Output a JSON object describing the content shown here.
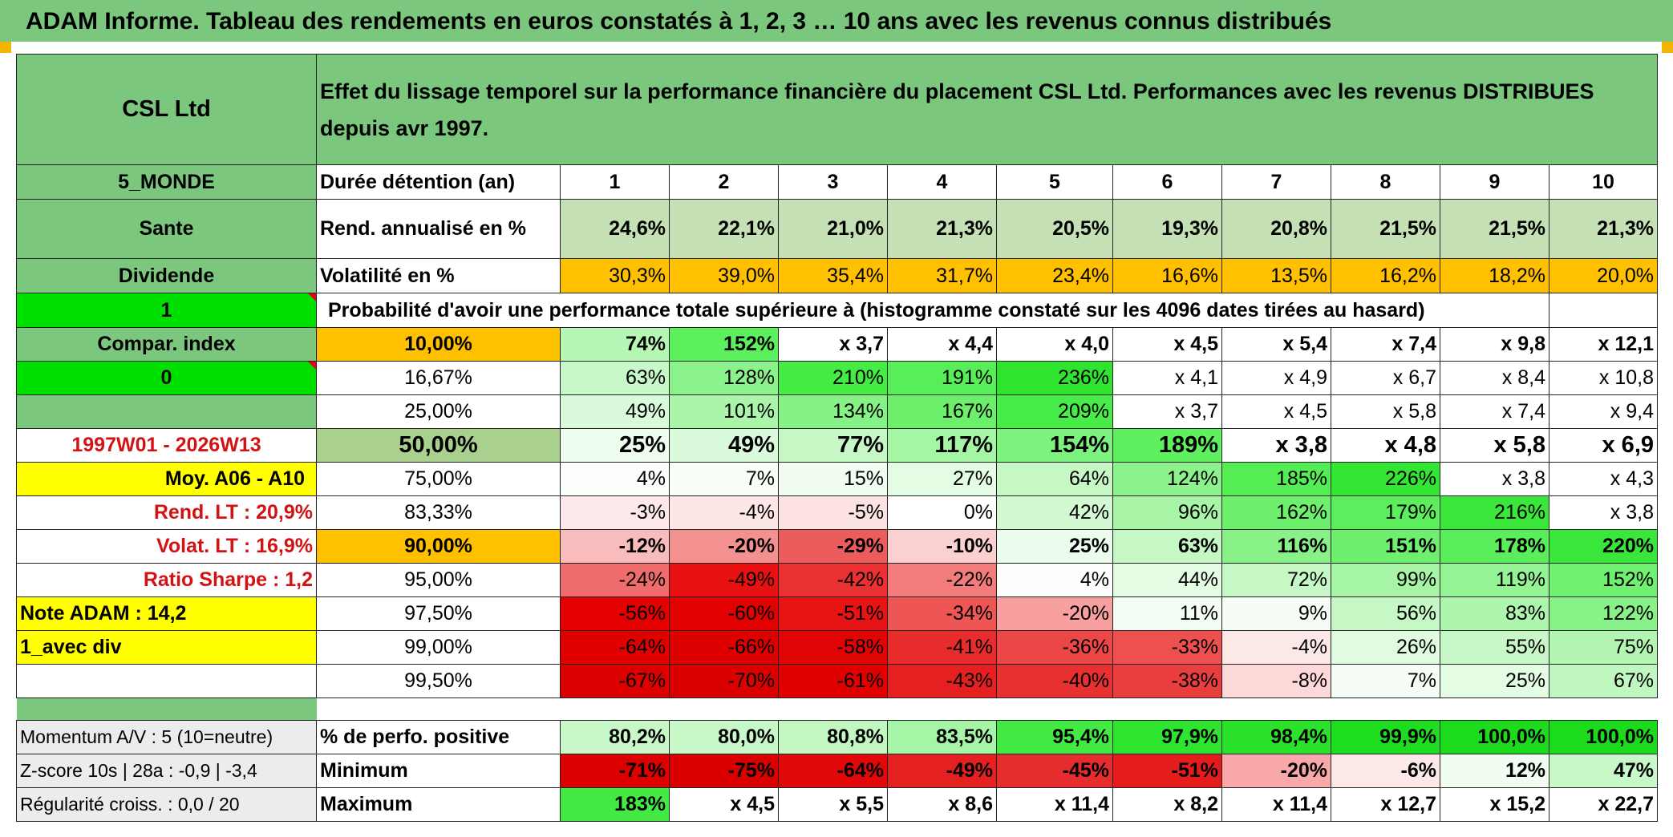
{
  "page": {
    "title": "ADAM Informe. Tableau des rendements en euros constatés à 1, 2, 3 … 10 ans avec les revenus connus distribués"
  },
  "colors": {
    "header_green": "#7cc77e",
    "bright_green": "#33cc33",
    "orange": "#ffc000",
    "yellow": "#ffff00",
    "label_red": "#d31313"
  },
  "sidebar": {
    "name": "CSL Ltd",
    "zone": "5_MONDE",
    "sector": "Sante",
    "type": "Dividende",
    "value_1": "1",
    "compar_label": "Compar. index",
    "value_0": "0",
    "period": "1997W01 - 2026W13",
    "moy_label": "Moy. A06 - A10",
    "rend_lt": "Rend. LT :    20,9%",
    "volat_lt": "Volat. LT :    16,9%",
    "sharpe": "Ratio Sharpe :    1,2",
    "note": "Note ADAM : 14,2",
    "mode": "1_avec div",
    "momentum": "Momentum A/V : 5 (10=neutre)",
    "zscore": "Z-score 10s | 28a : -0,9 | -3,4",
    "regularite": "Régularité croiss. : 0,0 / 20"
  },
  "header": {
    "description": "Effet du lissage temporel sur la performance financière du placement CSL Ltd. Performances avec les revenus DISTRIBUES depuis avr 1997."
  },
  "labels": {
    "duree": "Durée détention (an)",
    "rend": "Rend. annualisé en %",
    "vol": "Volatilité en %",
    "proba": "Probabilité d'avoir une performance totale supérieure à (histogramme constaté sur les 4096 dates tirées au hasard)",
    "pos": "% de perfo. positive",
    "min": "Minimum",
    "max": "Maximum"
  },
  "durations": [
    "1",
    "2",
    "3",
    "4",
    "5",
    "6",
    "7",
    "8",
    "9",
    "10"
  ],
  "rend": [
    "24,6%",
    "22,1%",
    "21,0%",
    "21,3%",
    "20,5%",
    "19,3%",
    "20,8%",
    "21,5%",
    "21,5%",
    "21,3%"
  ],
  "vol": [
    "30,3%",
    "39,0%",
    "35,4%",
    "31,7%",
    "23,4%",
    "16,6%",
    "13,5%",
    "16,2%",
    "18,2%",
    "20,0%"
  ],
  "prob_rows": [
    {
      "pct": "10,00%",
      "values": [
        "74%",
        "152%",
        "x 3,7",
        "x 4,4",
        "x 4,0",
        "x 4,5",
        "x 5,4",
        "x 7,4",
        "x 9,8",
        "x 12,1"
      ]
    },
    {
      "pct": "16,67%",
      "values": [
        "63%",
        "128%",
        "210%",
        "191%",
        "236%",
        "x 4,1",
        "x 4,9",
        "x 6,7",
        "x 8,4",
        "x 10,8"
      ]
    },
    {
      "pct": "25,00%",
      "values": [
        "49%",
        "101%",
        "134%",
        "167%",
        "209%",
        "x 3,7",
        "x 4,5",
        "x 5,8",
        "x 7,4",
        "x 9,4"
      ]
    },
    {
      "pct": "50,00%",
      "values": [
        "25%",
        "49%",
        "77%",
        "117%",
        "154%",
        "189%",
        "x 3,8",
        "x 4,8",
        "x 5,8",
        "x 6,9"
      ]
    },
    {
      "pct": "75,00%",
      "values": [
        "4%",
        "7%",
        "15%",
        "27%",
        "64%",
        "124%",
        "185%",
        "226%",
        "x 3,8",
        "x 4,3"
      ]
    },
    {
      "pct": "83,33%",
      "values": [
        "-3%",
        "-4%",
        "-5%",
        "0%",
        "42%",
        "96%",
        "162%",
        "179%",
        "216%",
        "x 3,8"
      ]
    },
    {
      "pct": "90,00%",
      "values": [
        "-12%",
        "-20%",
        "-29%",
        "-10%",
        "25%",
        "63%",
        "116%",
        "151%",
        "178%",
        "220%"
      ]
    },
    {
      "pct": "95,00%",
      "values": [
        "-24%",
        "-49%",
        "-42%",
        "-22%",
        "4%",
        "44%",
        "72%",
        "99%",
        "119%",
        "152%"
      ]
    },
    {
      "pct": "97,50%",
      "values": [
        "-56%",
        "-60%",
        "-51%",
        "-34%",
        "-20%",
        "11%",
        "9%",
        "56%",
        "83%",
        "122%"
      ]
    },
    {
      "pct": "99,00%",
      "values": [
        "-64%",
        "-66%",
        "-58%",
        "-41%",
        "-36%",
        "-33%",
        "-4%",
        "26%",
        "55%",
        "75%"
      ]
    },
    {
      "pct": "99,50%",
      "values": [
        "-67%",
        "-70%",
        "-61%",
        "-43%",
        "-40%",
        "-38%",
        "-8%",
        "7%",
        "25%",
        "67%"
      ]
    }
  ],
  "pos": [
    "80,2%",
    "80,0%",
    "80,8%",
    "83,5%",
    "95,4%",
    "97,9%",
    "98,4%",
    "99,9%",
    "100,0%",
    "100,0%"
  ],
  "min": [
    "-71%",
    "-75%",
    "-64%",
    "-49%",
    "-45%",
    "-51%",
    "-20%",
    "-6%",
    "12%",
    "47%"
  ],
  "max": [
    "183%",
    "x 4,5",
    "x 5,5",
    "x 8,6",
    "x 11,4",
    "x 8,2",
    "x 11,4",
    "x 12,7",
    "x 15,2",
    "x 22,7"
  ]
}
